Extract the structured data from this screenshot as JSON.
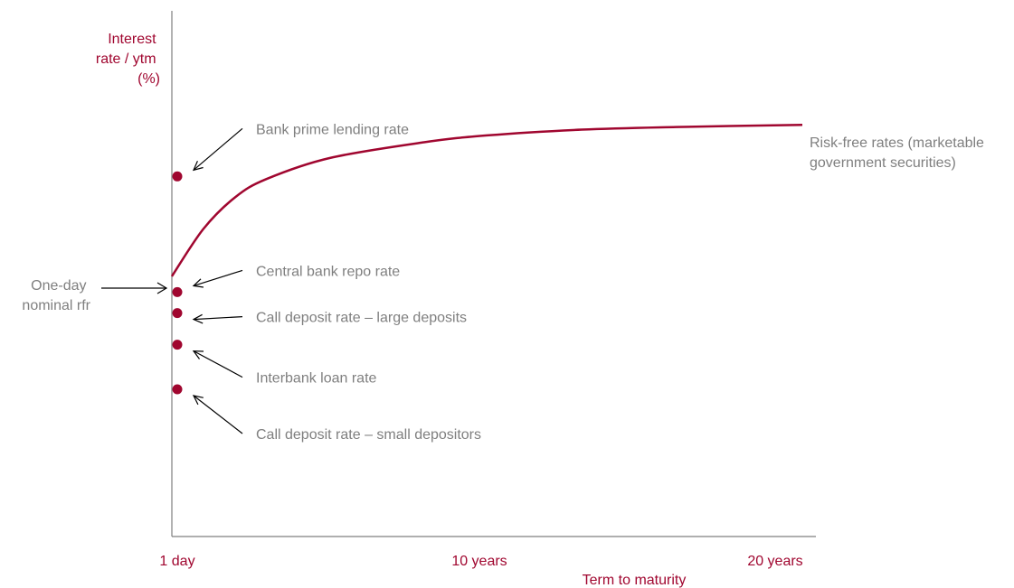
{
  "chart_data": {
    "type": "line",
    "title": "",
    "xlabel": "Term to maturity",
    "ylabel_lines": [
      "Interest",
      "rate / ytm",
      "(%)"
    ],
    "x_ticks": [
      "1 day",
      "10 years",
      "20 years"
    ],
    "xlim": [
      0,
      20
    ],
    "ylim": [
      0,
      100
    ],
    "grid": false,
    "colors": {
      "accent": "#a0062f",
      "text": "#7f7f7f",
      "arrow": "#000000"
    },
    "curve": {
      "label_lines": [
        "Risk-free rates (marketable",
        "government  securities)"
      ],
      "x": [
        0,
        1,
        2,
        3,
        5,
        8,
        10,
        13,
        16,
        20
      ],
      "y": [
        49.5,
        58.5,
        64.5,
        68.0,
        72.0,
        75.0,
        76.3,
        77.4,
        77.9,
        78.3
      ]
    },
    "left_label_lines": [
      "One-day",
      "nominal rfr"
    ],
    "points": [
      {
        "label": "Bank prime  lending rate",
        "y": 68.5
      },
      {
        "label": "Central bank repo rate",
        "y": 46.5
      },
      {
        "label": "Call deposit rate – large deposits",
        "y": 42.5
      },
      {
        "label": "Interbank loan rate",
        "y": 36.5
      },
      {
        "label": "Call deposit rate – small depositors",
        "y": 28.0
      }
    ]
  }
}
